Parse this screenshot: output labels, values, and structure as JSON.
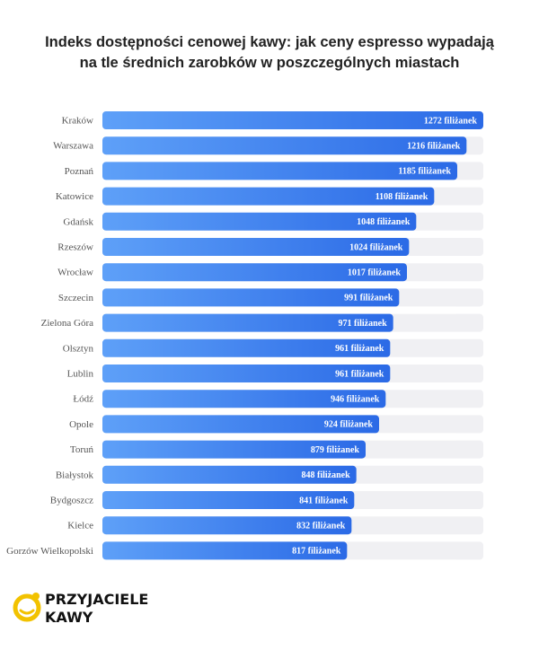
{
  "chart_data": {
    "type": "bar",
    "orientation": "horizontal",
    "title": [
      "Indeks dostępności cenowej kawy: jak ceny espresso wypadają",
      "na tle średnich zarobków w poszczególnych miastach"
    ],
    "categories": [
      "Kraków",
      "Warszawa",
      "Poznań",
      "Katowice",
      "Gdańsk",
      "Rzeszów",
      "Wrocław",
      "Szczecin",
      "Zielona Góra",
      "Olsztyn",
      "Lublin",
      "Łódź",
      "Opole",
      "Toruń",
      "Białystok",
      "Bydgoszcz",
      "Kielce",
      "Gorzów Wielkopolski"
    ],
    "values": [
      1272,
      1216,
      1185,
      1108,
      1048,
      1024,
      1017,
      991,
      971,
      961,
      961,
      946,
      924,
      879,
      848,
      841,
      832,
      817
    ],
    "value_labels": [
      "1272 filiżanek",
      "1216 filiżanek",
      "1185 filiżanek",
      "1108 filiżanek",
      "1048 filiżanek",
      "1024 filiżanek",
      "1017 filiżanek",
      "991 filiżanek",
      "971 filiżanek",
      "961 filiżanek",
      "961 filiżanek",
      "946 filiżanek",
      "924 filiżanek",
      "879 filiżanek",
      "848 filiżanek",
      "841 filiżanek",
      "832 filiżanek",
      "817 filiżanek"
    ],
    "color": "#3a7cf0",
    "xlim": [
      0,
      1272
    ]
  },
  "logo": [
    "PRZYJACIELE",
    "KAWY"
  ]
}
